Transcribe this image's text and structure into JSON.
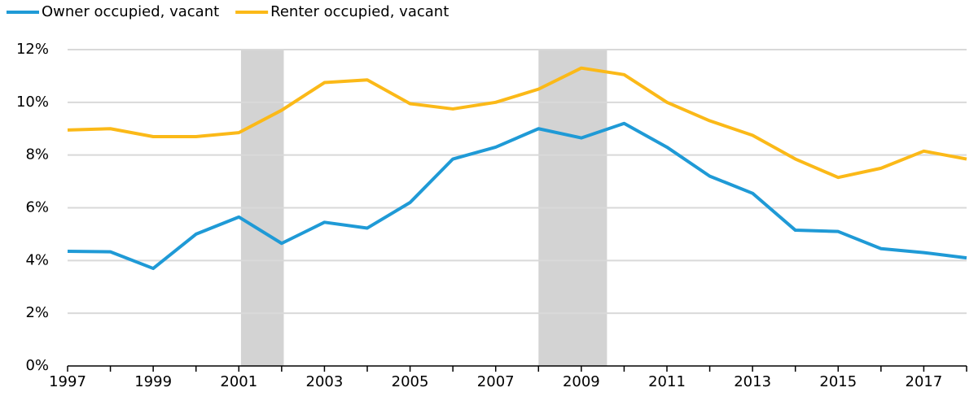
{
  "chart_data": {
    "type": "line",
    "x": [
      1997,
      1998,
      1999,
      2000,
      2001,
      2002,
      2003,
      2004,
      2005,
      2006,
      2007,
      2008,
      2009,
      2010,
      2011,
      2012,
      2013,
      2014,
      2015,
      2016,
      2017,
      2018
    ],
    "series": [
      {
        "name": "Owner occupied, vacant",
        "color": "#1f9ad6",
        "values": [
          4.35,
          4.33,
          3.7,
          5.0,
          5.65,
          4.65,
          5.45,
          5.23,
          6.2,
          7.85,
          8.3,
          9.0,
          8.65,
          9.2,
          8.3,
          7.2,
          6.55,
          5.15,
          5.1,
          4.45,
          4.3,
          4.1
        ]
      },
      {
        "name": "Renter occupied, vacant",
        "color": "#fbb918",
        "values": [
          8.95,
          9.0,
          8.7,
          8.7,
          8.85,
          9.7,
          10.75,
          10.85,
          9.95,
          9.75,
          10.0,
          10.5,
          11.3,
          11.05,
          10.0,
          9.3,
          8.75,
          7.85,
          7.15,
          7.5,
          8.15,
          7.85
        ]
      }
    ],
    "shaded_periods": [
      [
        2001.05,
        2002.05
      ],
      [
        2008.0,
        2009.6
      ]
    ],
    "shade_color": "#d3d3d3",
    "xlim": [
      1997,
      2018
    ],
    "xticks": [
      1997,
      1999,
      2001,
      2003,
      2005,
      2007,
      2009,
      2011,
      2013,
      2015,
      2017
    ],
    "xminorticks": [
      1998,
      2000,
      2002,
      2004,
      2006,
      2008,
      2010,
      2012,
      2014,
      2016,
      2018
    ],
    "ylim": [
      0,
      12
    ],
    "yticks": [
      {
        "value": 0,
        "label": "0%"
      },
      {
        "value": 2,
        "label": "2%"
      },
      {
        "value": 4,
        "label": "4%"
      },
      {
        "value": 6,
        "label": "6%"
      },
      {
        "value": 8,
        "label": "8%"
      },
      {
        "value": 10,
        "label": "10%"
      },
      {
        "value": 12,
        "label": "12%"
      }
    ],
    "grid": true,
    "legend": "top-left"
  }
}
